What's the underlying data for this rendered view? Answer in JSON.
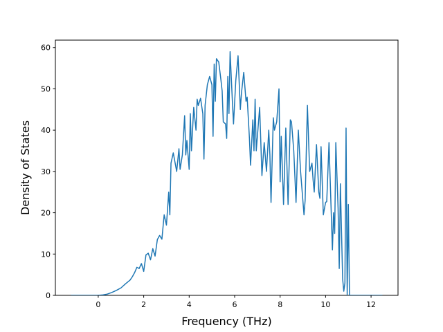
{
  "chart_data": {
    "type": "line",
    "xlabel": "Frequency (THz)",
    "ylabel": "Density of States",
    "color": "#1f77b4",
    "x": [
      -1.2,
      -0.5,
      0,
      0.2,
      0.4,
      0.6,
      0.8,
      1.0,
      1.2,
      1.4,
      1.5,
      1.6,
      1.7,
      1.8,
      1.9,
      2.0,
      2.1,
      2.2,
      2.3,
      2.4,
      2.5,
      2.6,
      2.7,
      2.8,
      2.9,
      3.0,
      3.05,
      3.1,
      3.15,
      3.2,
      3.3,
      3.45,
      3.55,
      3.6,
      3.7,
      3.8,
      3.85,
      3.9,
      4.0,
      4.05,
      4.1,
      4.2,
      4.3,
      4.35,
      4.4,
      4.5,
      4.6,
      4.65,
      4.7,
      4.8,
      4.9,
      5.0,
      5.05,
      5.1,
      5.15,
      5.2,
      5.3,
      5.4,
      5.45,
      5.5,
      5.6,
      5.65,
      5.7,
      5.75,
      5.8,
      5.9,
      5.95,
      6.05,
      6.15,
      6.25,
      6.3,
      6.4,
      6.5,
      6.55,
      6.65,
      6.7,
      6.8,
      6.85,
      6.9,
      6.95,
      7.05,
      7.1,
      7.2,
      7.3,
      7.4,
      7.5,
      7.55,
      7.6,
      7.7,
      7.75,
      7.85,
      7.95,
      8.0,
      8.05,
      8.15,
      8.25,
      8.35,
      8.45,
      8.5,
      8.6,
      8.7,
      8.8,
      8.9,
      9.05,
      9.1,
      9.2,
      9.3,
      9.4,
      9.45,
      9.5,
      9.6,
      9.7,
      9.75,
      9.8,
      9.9,
      10.0,
      10.05,
      10.15,
      10.3,
      10.35,
      10.4,
      10.45,
      10.55,
      10.6,
      10.65,
      10.75,
      10.8,
      10.85,
      10.9,
      10.95,
      11.0,
      11.05,
      12.5
    ],
    "values": [
      0,
      0,
      0,
      0.1,
      0.3,
      0.7,
      1.2,
      1.8,
      2.8,
      3.7,
      4.5,
      5.5,
      6.8,
      6.5,
      7.7,
      5.8,
      9.8,
      10.2,
      8.6,
      11.3,
      9.5,
      13.5,
      14.5,
      13.6,
      19.5,
      17,
      21,
      25,
      19.5,
      32,
      34.5,
      30,
      35.5,
      30.5,
      34,
      43.5,
      34,
      37.5,
      30.5,
      44,
      35,
      45.5,
      40,
      47.5,
      46,
      47.7,
      44,
      33,
      46,
      51,
      53,
      51,
      38.5,
      56,
      47,
      57.3,
      56.5,
      52,
      49.5,
      42,
      41.5,
      38,
      53,
      44,
      59,
      47,
      41.5,
      52,
      58,
      45,
      49,
      54,
      47,
      48,
      38,
      31.5,
      42.5,
      35,
      47.5,
      35,
      42,
      45.5,
      29,
      37,
      30,
      40,
      34,
      22.5,
      43,
      40,
      42,
      50,
      27.5,
      38.5,
      22,
      40.5,
      22,
      42.5,
      42,
      35,
      22.5,
      40,
      30,
      19.5,
      23,
      46,
      30,
      32,
      28,
      25,
      36.5,
      25,
      23.5,
      36,
      19.5,
      22.5,
      22.7,
      37,
      11,
      20,
      15,
      37,
      21,
      6.5,
      27,
      4,
      1,
      3,
      40.5,
      0,
      22,
      0,
      0
    ],
    "xlim": [
      -1.885,
      13.185
    ],
    "xticks": [
      0,
      2,
      4,
      6,
      8,
      10,
      12
    ],
    "ylim": [
      0,
      61.8
    ],
    "yticks": [
      0,
      10,
      20,
      30,
      40,
      50,
      60
    ]
  }
}
